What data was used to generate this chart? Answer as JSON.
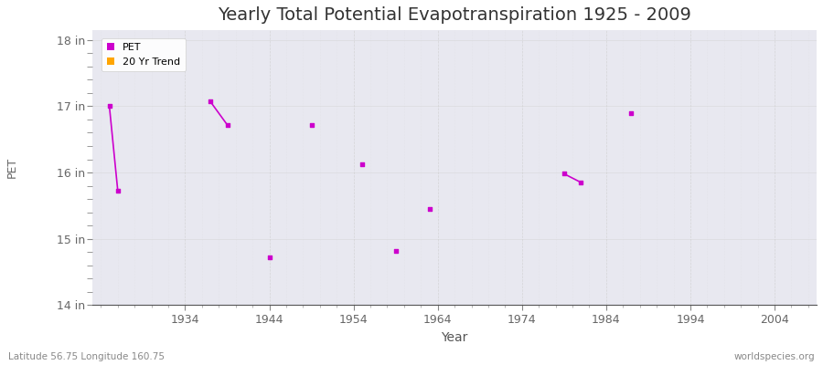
{
  "title": "Yearly Total Potential Evapotranspiration 1925 - 2009",
  "xlabel": "Year",
  "ylabel": "PET",
  "footnote_left": "Latitude 56.75 Longitude 160.75",
  "footnote_right": "worldspecies.org",
  "xlim": [
    1923,
    2009
  ],
  "ylim": [
    14,
    18.15
  ],
  "yticks": [
    14,
    15,
    16,
    17,
    18
  ],
  "ytick_labels": [
    "14 in",
    "15 in",
    "16 in",
    "17 in",
    "18 in"
  ],
  "xticks": [
    1934,
    1944,
    1954,
    1964,
    1974,
    1984,
    1994,
    2004
  ],
  "pet_color": "#cc00cc",
  "trend_color": "#ffa500",
  "bg_plot": "#e8e8f0",
  "bg_fig": "#ffffff",
  "major_grid_color": "#cccccc",
  "minor_grid_color": "#dddddd",
  "pet_data": [
    [
      1925,
      17.0
    ],
    [
      1926,
      15.72
    ],
    [
      1937,
      17.07
    ],
    [
      1939,
      16.72
    ],
    [
      1944,
      14.72
    ],
    [
      1949,
      16.72
    ],
    [
      1955,
      16.12
    ],
    [
      1959,
      14.82
    ],
    [
      1963,
      15.45
    ],
    [
      1979,
      15.98
    ],
    [
      1981,
      15.85
    ],
    [
      1987,
      16.9
    ]
  ],
  "connected_segments": [
    [
      [
        1925,
        17.0
      ],
      [
        1926,
        15.72
      ]
    ],
    [
      [
        1937,
        17.07
      ],
      [
        1939,
        16.72
      ]
    ],
    [
      [
        1979,
        15.98
      ],
      [
        1981,
        15.85
      ]
    ]
  ],
  "title_fontsize": 14,
  "axis_label_fontsize": 9,
  "tick_label_fontsize": 9
}
